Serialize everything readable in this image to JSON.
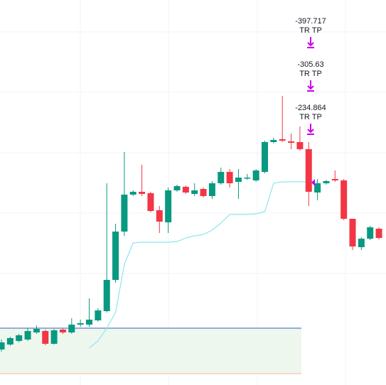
{
  "chart_data": {
    "type": "candlestick",
    "ylim": [
      0,
      542
    ],
    "up_color": "#089981",
    "down_color": "#f23645",
    "open": [
      50,
      57,
      62,
      64,
      74,
      76,
      58,
      78,
      74,
      85,
      85,
      91,
      104,
      148,
      216,
      268,
      272,
      270,
      246,
      229,
      274,
      279,
      269,
      276,
      266,
      284,
      300,
      286,
      291,
      288,
      300,
      342,
      346,
      343,
      342,
      332,
      271,
      284,
      290,
      288,
      234,
      194,
      206,
      220
    ],
    "high": [
      64,
      68,
      72,
      80,
      84,
      78,
      79,
      80,
      94,
      92,
      122,
      108,
      284,
      227,
      328,
      274,
      310,
      272,
      252,
      278,
      282,
      281,
      284,
      278,
      287,
      306,
      304,
      304,
      297,
      304,
      344,
      348,
      407,
      354,
      364,
      342,
      290,
      289,
      302,
      290,
      234,
      208,
      224,
      222
    ],
    "low": [
      47,
      55,
      60,
      62,
      72,
      56,
      57,
      72,
      72,
      82,
      82,
      89,
      102,
      144,
      210,
      266,
      266,
      243,
      214,
      214,
      272,
      269,
      266,
      264,
      262,
      282,
      278,
      262,
      289,
      286,
      298,
      340,
      342,
      332,
      330,
      252,
      260,
      282,
      286,
      232,
      190,
      190,
      204,
      205
    ],
    "close": [
      60,
      66,
      70,
      76,
      79,
      58,
      77,
      74,
      85,
      87,
      92,
      105,
      148,
      216,
      268,
      272,
      269,
      245,
      230,
      274,
      280,
      271,
      274,
      266,
      284,
      300,
      284,
      292,
      292,
      302,
      342,
      345,
      344,
      341,
      332,
      272,
      284,
      287,
      288,
      234,
      195,
      206,
      222,
      207
    ],
    "trend": {
      "color": "#8ee6ef",
      "values": [
        null,
        null,
        null,
        null,
        null,
        null,
        null,
        null,
        null,
        null,
        52,
        62,
        80,
        102,
        170,
        200,
        201,
        201,
        201,
        201,
        202,
        207,
        210,
        212,
        218,
        228,
        240,
        240,
        240,
        241,
        244,
        284,
        286,
        286,
        286,
        286,
        286,
        null,
        null,
        null,
        null,
        null,
        null,
        null
      ]
    },
    "zone": {
      "top": 80,
      "bottom": 16,
      "line_color": "#5b7fc7",
      "bottom_color": "#f5c6a8",
      "fill": "#eef7ee"
    },
    "annotations": [
      {
        "value": "-397.717",
        "label": "TR TP"
      },
      {
        "value": "-305.63",
        "label": "TR TP"
      },
      {
        "value": "-234.864",
        "label": "TR TP"
      }
    ],
    "annotation_color": "#cc00ee"
  }
}
